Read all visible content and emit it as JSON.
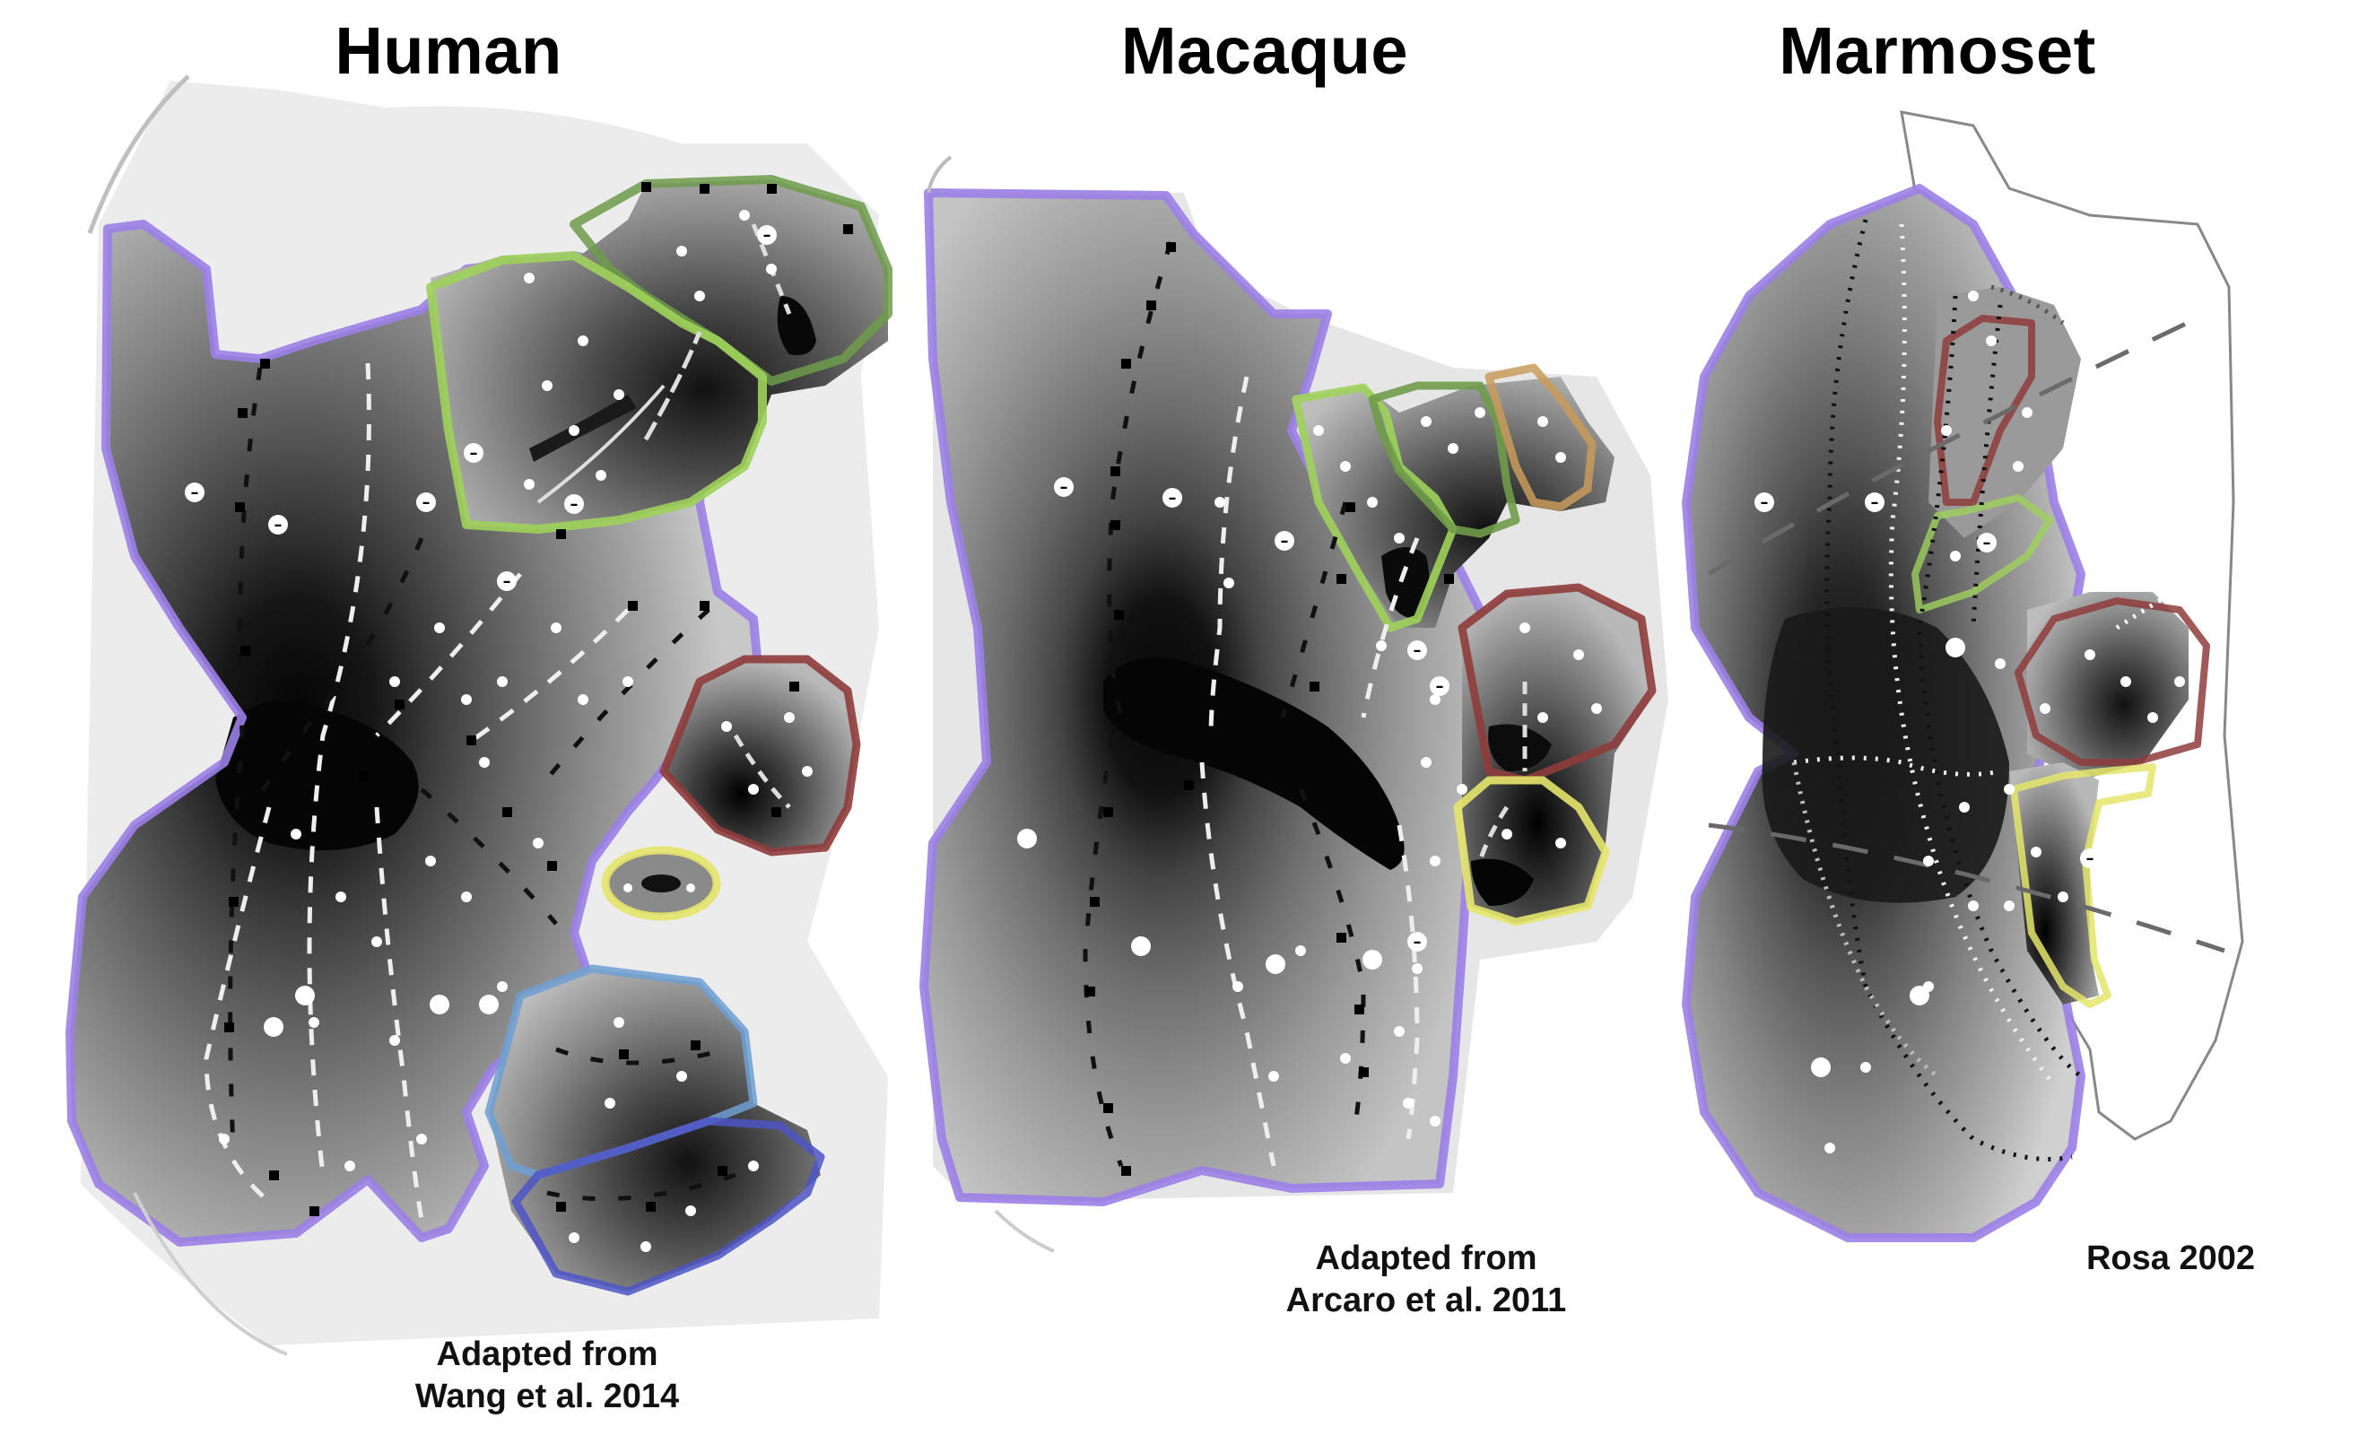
{
  "panels": [
    {
      "title": "Human",
      "caption_line1": "Adapted from",
      "caption_line2": "Wang et al. 2014"
    },
    {
      "title": "Macaque",
      "caption_line1": "Adapted from",
      "caption_line2": "Arcaro et al. 2011"
    },
    {
      "title": "Marmoset",
      "caption_line1": "",
      "caption_line2": "Rosa 2002"
    }
  ],
  "colors": {
    "outline": "#9b7fe6",
    "green": "#6f9c4a",
    "lime": "#9fd15b",
    "red": "#8f3c3c",
    "yellow": "#e4e56a",
    "blue": "#6f9fd2",
    "darkblue": "#4d55c4",
    "orange": "#c89a5a"
  },
  "markers": {
    "plus": "+",
    "minus": "–"
  }
}
